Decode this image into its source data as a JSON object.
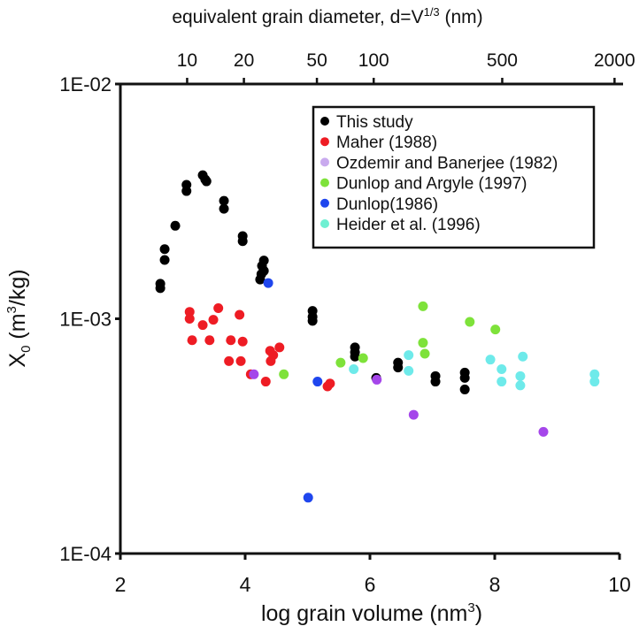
{
  "chart_data": {
    "type": "scatter",
    "title": "",
    "xlabel": "log grain volume (nm",
    "xlabel_sup": "3",
    "xlabel_end": ")",
    "ylabel_main": "X",
    "ylabel_sub": "0",
    "ylabel_unit": " (m",
    "ylabel_sup": "3",
    "ylabel_end": "/kg)",
    "top_xlabel": "equivalent grain diameter, d=V",
    "top_xlabel_sup": "1/3",
    "top_xlabel_end": " (nm)",
    "xlim": [
      2,
      10
    ],
    "ylim": [
      0.0001,
      0.01
    ],
    "yscale": "log",
    "x_ticks": [
      2,
      4,
      6,
      8,
      10
    ],
    "x_tick_labels": [
      "2",
      "4",
      "6",
      "8",
      "10"
    ],
    "y_ticks": [
      0.01,
      0.001,
      0.0001
    ],
    "y_tick_labels": [
      "1E-02",
      "1E-03",
      "1E-04"
    ],
    "top_ticks_x": [
      3.07,
      3.98,
      5.15,
      6.06,
      8.12,
      9.92
    ],
    "top_tick_labels": [
      "10",
      "20",
      "50",
      "100",
      "500",
      "2000"
    ],
    "grid": false,
    "legend_position": "top-right",
    "series": [
      {
        "name": "This study",
        "color": "#000000",
        "points": [
          [
            2.64,
            0.00141
          ],
          [
            2.64,
            0.00135
          ],
          [
            2.71,
            0.00198
          ],
          [
            2.71,
            0.00178
          ],
          [
            2.88,
            0.00249
          ],
          [
            3.06,
            0.00372
          ],
          [
            3.06,
            0.0035
          ],
          [
            3.32,
            0.00409
          ],
          [
            3.36,
            0.00392
          ],
          [
            3.38,
            0.00385
          ],
          [
            3.66,
            0.00318
          ],
          [
            3.66,
            0.00294
          ],
          [
            3.96,
            0.00225
          ],
          [
            3.96,
            0.00214
          ],
          [
            4.3,
            0.00177
          ],
          [
            4.27,
            0.00168
          ],
          [
            4.3,
            0.0016
          ],
          [
            4.26,
            0.00155
          ],
          [
            4.24,
            0.00147
          ],
          [
            5.08,
            0.00108
          ],
          [
            5.08,
            0.00102
          ],
          [
            5.08,
            0.00098
          ],
          [
            5.76,
            0.000755
          ],
          [
            5.76,
            0.00072
          ],
          [
            5.76,
            0.00069
          ],
          [
            6.45,
            0.00065
          ],
          [
            6.45,
            0.00062
          ],
          [
            6.1,
            0.00056
          ],
          [
            7.05,
            0.00057
          ],
          [
            7.05,
            0.00054
          ],
          [
            7.52,
            0.00059
          ],
          [
            7.52,
            0.00056
          ],
          [
            7.52,
            0.0005
          ]
        ]
      },
      {
        "name": "Maher (1988)",
        "color": "#ee1c24",
        "points": [
          [
            3.11,
            0.00107
          ],
          [
            3.11,
            0.001
          ],
          [
            3.57,
            0.00111
          ],
          [
            3.49,
            0.00099
          ],
          [
            3.32,
            0.00094
          ],
          [
            3.91,
            0.00104
          ],
          [
            3.15,
            0.00081
          ],
          [
            3.43,
            0.00081
          ],
          [
            3.77,
            0.00081
          ],
          [
            3.96,
            0.0008
          ],
          [
            4.55,
            0.000755
          ],
          [
            4.4,
            0.00073
          ],
          [
            4.45,
            0.0007
          ],
          [
            4.41,
            0.00066
          ],
          [
            3.74,
            0.00066
          ],
          [
            3.93,
            0.00066
          ],
          [
            4.09,
            0.00058
          ],
          [
            4.33,
            0.00054
          ],
          [
            5.32,
            0.000515
          ],
          [
            5.36,
            0.00053
          ]
        ]
      },
      {
        "name": "Ozdemir and Banerjee (1982)",
        "color": "#a546ea",
        "legend_color": "#c9aaee",
        "points": [
          [
            4.14,
            0.00058
          ],
          [
            6.11,
            0.00055
          ],
          [
            6.7,
            0.00039
          ],
          [
            8.78,
            0.00033
          ]
        ]
      },
      {
        "name": "Dunlop and Argyle (1997)",
        "color": "#7ee23a",
        "points": [
          [
            4.62,
            0.00058
          ],
          [
            5.53,
            0.00065
          ],
          [
            5.89,
            0.00068
          ],
          [
            6.85,
            0.00113
          ],
          [
            6.85,
            0.00079
          ],
          [
            6.88,
            0.00071
          ],
          [
            7.6,
            0.00097
          ],
          [
            8.01,
            0.0009
          ]
        ]
      },
      {
        "name": "Dunlop(1986)",
        "color": "#1f46ee",
        "points": [
          [
            4.37,
            0.00142
          ],
          [
            5.16,
            0.00054
          ],
          [
            5.01,
            0.000173
          ]
        ]
      },
      {
        "name": "Heider et al. (1996)",
        "color": "#6eeaea",
        "legend_color": "#6ef0d2",
        "points": [
          [
            5.74,
            0.00061
          ],
          [
            6.62,
            0.0007
          ],
          [
            6.62,
            0.0006
          ],
          [
            7.93,
            0.00067
          ],
          [
            8.11,
            0.00061
          ],
          [
            8.11,
            0.00054
          ],
          [
            8.45,
            0.00069
          ],
          [
            8.41,
            0.00057
          ],
          [
            8.41,
            0.00052
          ],
          [
            9.6,
            0.00058
          ],
          [
            9.6,
            0.00054
          ]
        ]
      }
    ]
  }
}
